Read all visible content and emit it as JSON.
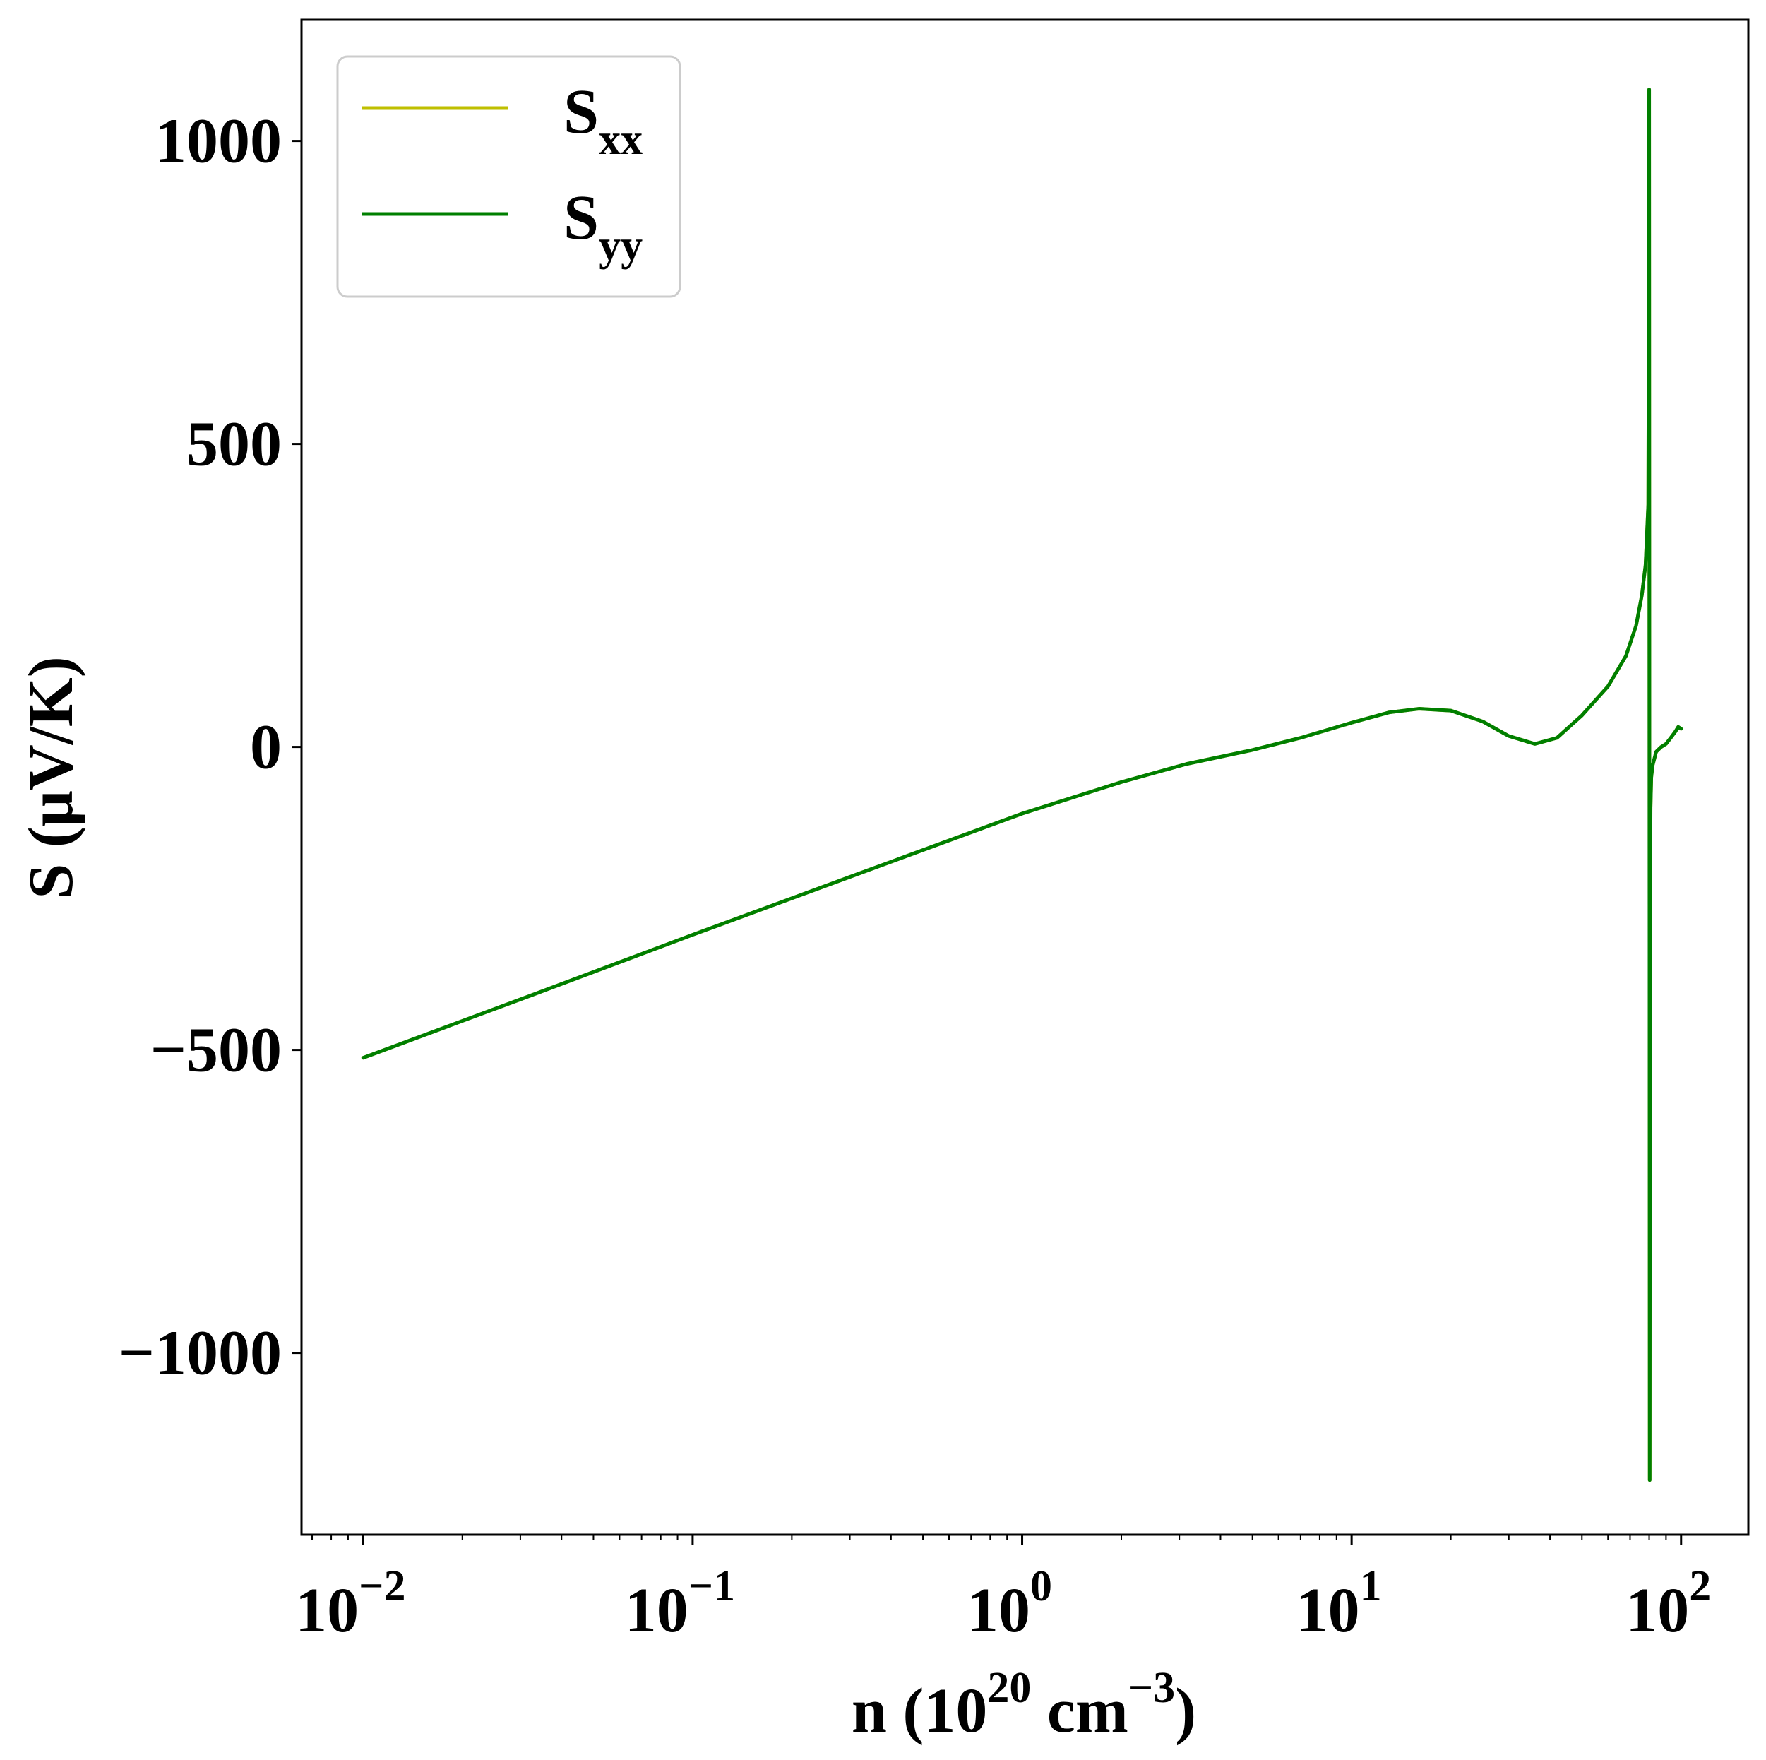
{
  "chart_data": {
    "type": "line",
    "xscale": "log",
    "xlim": [
      0.0065,
      160
    ],
    "ylim": [
      -1300,
      1200
    ],
    "xlabel": {
      "prefix": "n (10",
      "sup1": "20",
      "middle": " cm",
      "sup2": "−3",
      "suffix": ")"
    },
    "ylabel": "S (μV/K)",
    "grid": false,
    "legend_position": "top-left",
    "x_ticks": [
      {
        "value": 0.01,
        "base": "10",
        "exp": "−2"
      },
      {
        "value": 0.1,
        "base": "10",
        "exp": "−1"
      },
      {
        "value": 1,
        "base": "10",
        "exp": "0"
      },
      {
        "value": 10,
        "base": "10",
        "exp": "1"
      },
      {
        "value": 100,
        "base": "10",
        "exp": "2"
      }
    ],
    "y_ticks": [
      {
        "value": 1000,
        "label": "1000"
      },
      {
        "value": 500,
        "label": "500"
      },
      {
        "value": 0,
        "label": "0"
      },
      {
        "value": -500,
        "label": "−500"
      },
      {
        "value": -1000,
        "label": "−1000"
      }
    ],
    "series": [
      {
        "name": "S",
        "name_sub": "xx",
        "color": "#bfbf00",
        "x": [
          0.01,
          0.0316,
          0.1,
          0.316,
          1.0,
          2.0,
          3.16,
          5.0,
          7.0,
          10.0,
          13.0,
          16.0,
          20.0,
          25.0,
          30.0,
          36.0,
          42.0,
          50.0,
          60.0,
          68.0,
          73.0,
          76.0,
          78.0,
          79.5,
          80.0,
          80.3,
          80.5,
          80.8,
          81.2,
          82.0,
          84.0,
          87.0,
          90.0,
          93.0,
          96.0,
          98.0,
          100.0
        ],
        "y": [
          -513,
          -412,
          -310,
          -210,
          -110,
          -58,
          -28,
          -5,
          15,
          40,
          57,
          63,
          60,
          42,
          18,
          5,
          15,
          52,
          100,
          150,
          200,
          250,
          300,
          400,
          1085,
          -1210,
          -400,
          -100,
          -50,
          -30,
          -8,
          0,
          5,
          15,
          25,
          33,
          30
        ]
      },
      {
        "name": "S",
        "name_sub": "yy",
        "color": "#007f00",
        "x": [
          0.01,
          0.0316,
          0.1,
          0.316,
          1.0,
          2.0,
          3.16,
          5.0,
          7.0,
          10.0,
          13.0,
          16.0,
          20.0,
          25.0,
          30.0,
          36.0,
          42.0,
          50.0,
          60.0,
          68.0,
          73.0,
          76.0,
          78.0,
          79.5,
          80.0,
          80.3,
          80.5,
          80.8,
          81.2,
          82.0,
          84.0,
          87.0,
          90.0,
          93.0,
          96.0,
          98.0,
          100.0
        ],
        "y": [
          -513,
          -412,
          -310,
          -210,
          -110,
          -58,
          -28,
          -5,
          15,
          40,
          57,
          63,
          60,
          42,
          18,
          5,
          15,
          52,
          100,
          150,
          200,
          250,
          300,
          400,
          1085,
          -1210,
          -400,
          -100,
          -50,
          -30,
          -8,
          0,
          5,
          15,
          25,
          33,
          30
        ]
      }
    ]
  }
}
